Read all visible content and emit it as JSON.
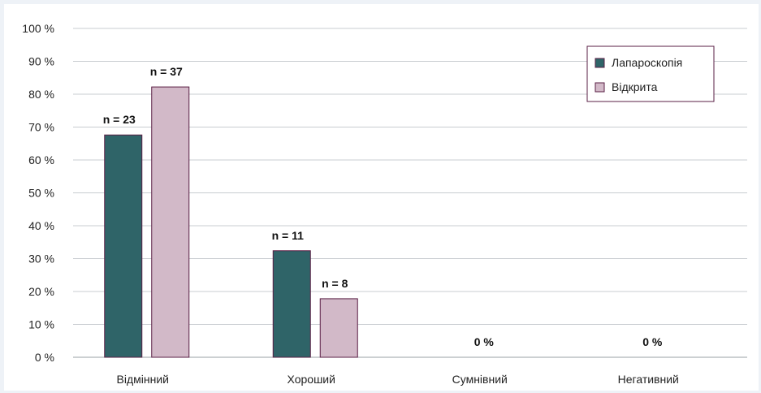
{
  "chart_data": {
    "type": "bar",
    "categories": [
      "Відмінний",
      "Хороший",
      "Сумнівний",
      "Негативний"
    ],
    "series": [
      {
        "name": "Лапароскопія",
        "color": "#2f6468",
        "values": [
          67.6,
          32.4,
          0,
          0
        ]
      },
      {
        "name": "Відкрита",
        "color": "#d2b9c8",
        "values": [
          82.2,
          17.8,
          0,
          0
        ]
      }
    ],
    "data_labels": [
      "n = 23",
      "n = 37",
      "n = 11",
      "n = 8",
      "0 %",
      "0 %"
    ],
    "y_ticks": [
      "0 %",
      "10 %",
      "20 %",
      "30 %",
      "40 %",
      "50 %",
      "60 %",
      "70 %",
      "80 %",
      "90 %",
      "100 %"
    ],
    "ylim": [
      0,
      100
    ],
    "grid": true,
    "legend": "top-right",
    "bar_border_color": "#5a1f45"
  }
}
